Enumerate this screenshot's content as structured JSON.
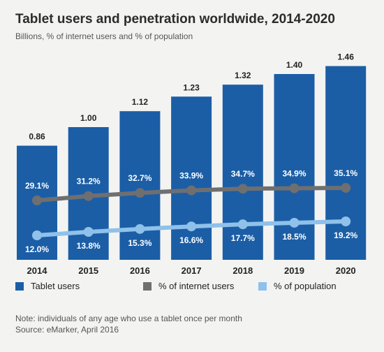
{
  "title": "Tablet users and penetration worldwide, 2014-2020",
  "subtitle": "Billions, % of internet users and % of population",
  "legend": [
    {
      "label": "Tablet users",
      "color": "#1b5ea6"
    },
    {
      "label": "% of internet users",
      "color": "#6f6f70"
    },
    {
      "label": "% of population",
      "color": "#8fc1ea"
    }
  ],
  "note": "Note: individuals of any age who use a tablet once per month",
  "source": "Source: eMarker, April 2016",
  "chart_data": {
    "type": "bar",
    "categories": [
      "2014",
      "2015",
      "2016",
      "2017",
      "2018",
      "2019",
      "2020"
    ],
    "series": [
      {
        "name": "Tablet users",
        "type": "bar",
        "color": "#1b5ea6",
        "values": [
          0.86,
          1.0,
          1.12,
          1.23,
          1.32,
          1.4,
          1.46
        ],
        "labels": [
          "0.86",
          "1.00",
          "1.12",
          "1.23",
          "1.32",
          "1.40",
          "1.46"
        ]
      },
      {
        "name": "% of internet users",
        "type": "line",
        "color": "#6f6f70",
        "values": [
          29.1,
          31.2,
          32.7,
          33.9,
          34.7,
          34.9,
          35.1
        ],
        "labels": [
          "29.1%",
          "31.2%",
          "32.7%",
          "33.9%",
          "34.7%",
          "34.9%",
          "35.1%"
        ]
      },
      {
        "name": "% of population",
        "type": "line",
        "color": "#8fc1ea",
        "values": [
          12.0,
          13.8,
          15.3,
          16.6,
          17.7,
          18.5,
          19.2
        ],
        "labels": [
          "12.0%",
          "13.8%",
          "15.3%",
          "16.6%",
          "17.7%",
          "18.5%",
          "19.2%"
        ]
      }
    ]
  }
}
